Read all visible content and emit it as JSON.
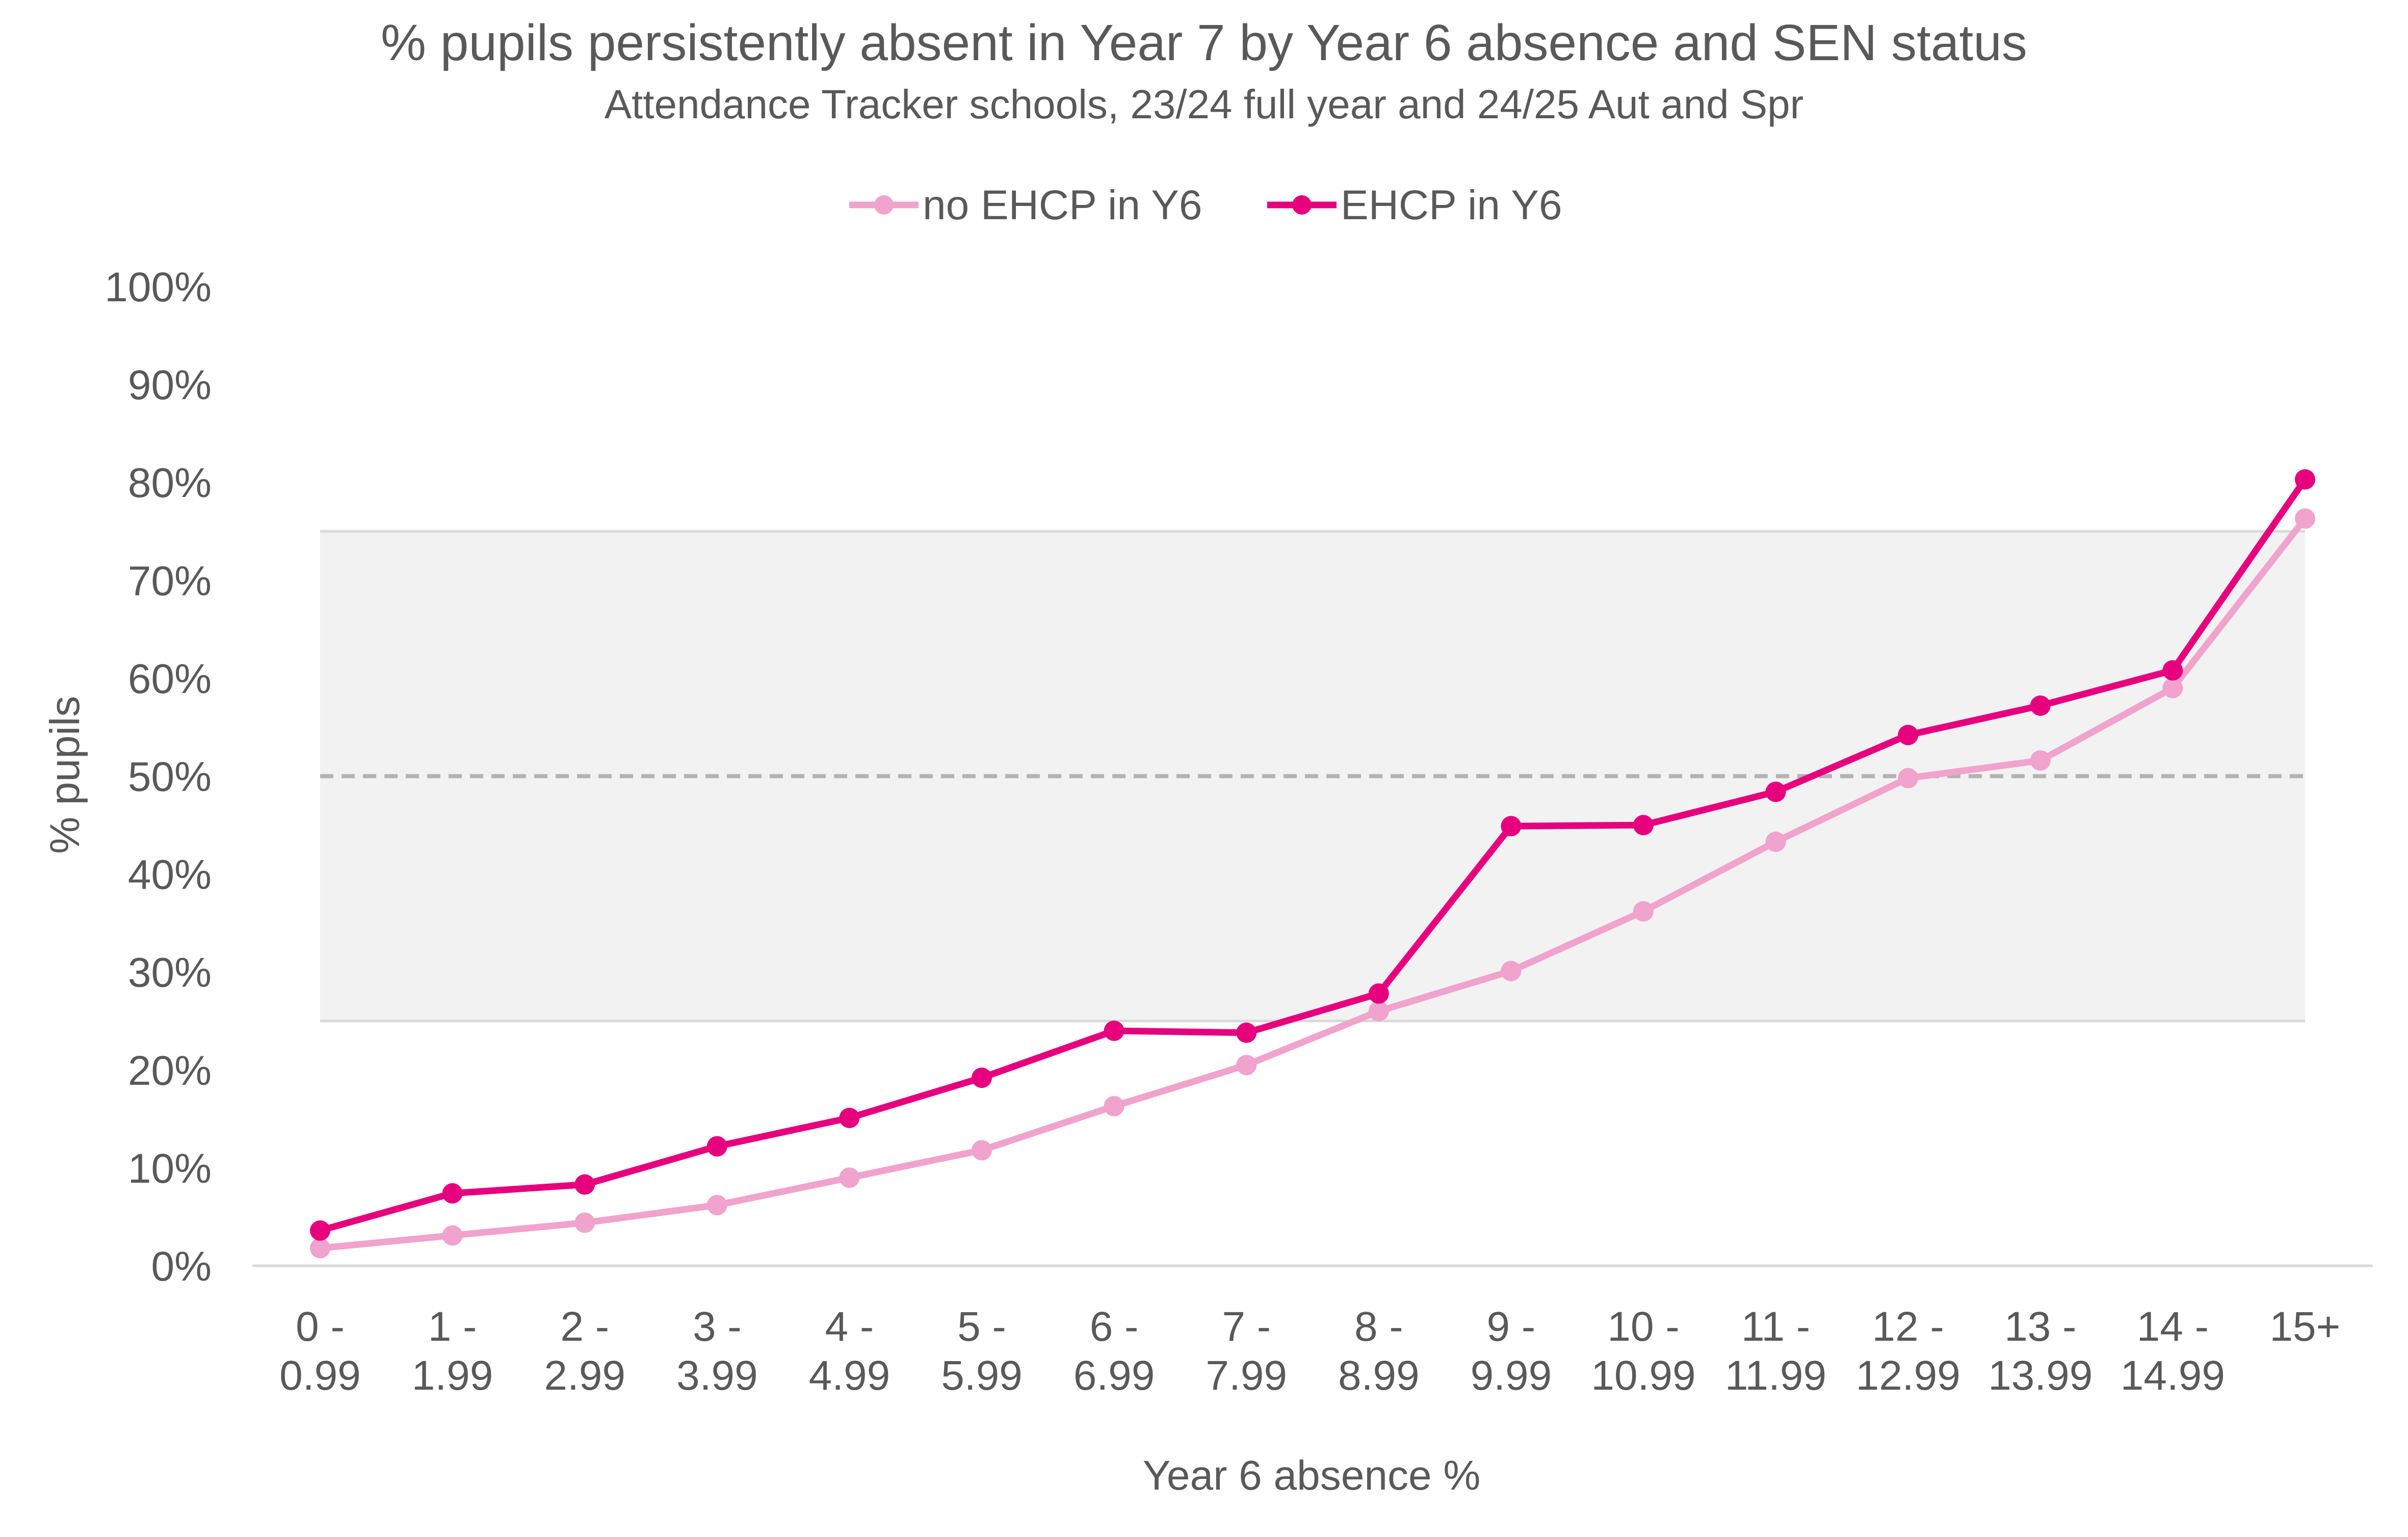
{
  "chart_data": {
    "type": "line",
    "title": "% pupils persistently absent in Year 7 by Year 6 absence and SEN status",
    "subtitle": "Attendance Tracker schools, 23/24 full year and 24/25 Aut and Spr",
    "xlabel": "Year 6 absence %",
    "ylabel": "% pupils",
    "ylim": [
      0,
      100
    ],
    "y_ticks": [
      "0%",
      "10%",
      "20%",
      "30%",
      "40%",
      "50%",
      "60%",
      "70%",
      "80%",
      "90%",
      "100%"
    ],
    "categories": [
      [
        "0 -",
        "0.99"
      ],
      [
        "1 -",
        "1.99"
      ],
      [
        "2 -",
        "2.99"
      ],
      [
        "3 -",
        "3.99"
      ],
      [
        "4 -",
        "4.99"
      ],
      [
        "5 -",
        "5.99"
      ],
      [
        "6 -",
        "6.99"
      ],
      [
        "7 -",
        "7.99"
      ],
      [
        "8 -",
        "8.99"
      ],
      [
        "9 -",
        "9.99"
      ],
      [
        "10 -",
        "10.99"
      ],
      [
        "11 -",
        "11.99"
      ],
      [
        "12 -",
        "12.99"
      ],
      [
        "13 -",
        "13.99"
      ],
      [
        "14 -",
        "14.99"
      ],
      [
        "15+",
        ""
      ]
    ],
    "shaded_band": [
      25,
      75
    ],
    "reference_line": 50,
    "legend_position": "top",
    "grid": false,
    "series": [
      {
        "name": "no EHCP in Y6",
        "color": "#f0a3cc",
        "values": [
          1.8,
          3.1,
          4.4,
          6.2,
          9.0,
          11.8,
          16.3,
          20.5,
          26.0,
          30.1,
          36.2,
          43.3,
          49.8,
          51.6,
          59.0,
          76.3
        ]
      },
      {
        "name": "EHCP in Y6",
        "color": "#e6007e",
        "values": [
          3.6,
          7.4,
          8.3,
          12.2,
          15.1,
          19.2,
          24.0,
          23.8,
          27.8,
          44.9,
          45.0,
          48.4,
          54.2,
          57.2,
          60.8,
          80.3
        ]
      }
    ]
  }
}
